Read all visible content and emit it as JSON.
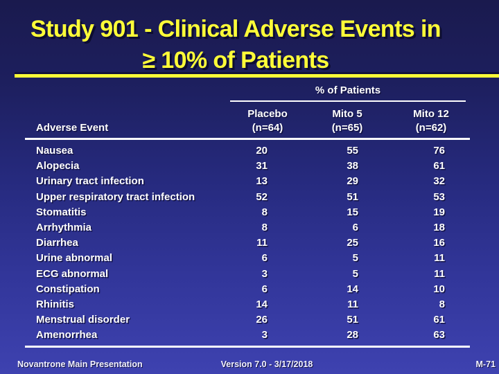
{
  "title": {
    "line1": "Study 901 - Clinical Adverse Events in",
    "line2": "≥ 10% of Patients"
  },
  "table": {
    "group_header": "% of Patients",
    "row_header": "Adverse Event",
    "columns": [
      {
        "name": "Placebo",
        "n": "(n=64)"
      },
      {
        "name": "Mito 5",
        "n": "(n=65)"
      },
      {
        "name": "Mito 12",
        "n": "(n=62)"
      }
    ],
    "rows": [
      {
        "event": "Nausea",
        "values": [
          20,
          55,
          76
        ]
      },
      {
        "event": "Alopecia",
        "values": [
          31,
          38,
          61
        ]
      },
      {
        "event": "Urinary tract infection",
        "values": [
          13,
          29,
          32
        ]
      },
      {
        "event": "Upper respiratory tract infection",
        "values": [
          52,
          51,
          53
        ]
      },
      {
        "event": "Stomatitis",
        "values": [
          8,
          15,
          19
        ]
      },
      {
        "event": "Arrhythmia",
        "values": [
          8,
          6,
          18
        ]
      },
      {
        "event": "Diarrhea",
        "values": [
          11,
          25,
          16
        ]
      },
      {
        "event": "Urine abnormal",
        "values": [
          6,
          5,
          11
        ]
      },
      {
        "event": "ECG abnormal",
        "values": [
          3,
          5,
          11
        ]
      },
      {
        "event": "Constipation",
        "values": [
          6,
          14,
          10
        ]
      },
      {
        "event": "Rhinitis",
        "values": [
          14,
          11,
          8
        ]
      },
      {
        "event": "Menstrual disorder",
        "values": [
          26,
          51,
          61
        ]
      },
      {
        "event": "Amenorrhea",
        "values": [
          3,
          28,
          63
        ]
      }
    ]
  },
  "footer": {
    "left": "Novantrone Main Presentation",
    "center": "Version 7.0 - 3/17/2018",
    "right": "M-71"
  },
  "colors": {
    "accent_yellow": "#ffff38",
    "background_top": "#1a1a4e",
    "background_bottom": "#3e42b0",
    "rule_white": "#ffffff",
    "text_white": "#ffffff"
  },
  "chart_data": {
    "type": "table",
    "title": "Study 901 - Clinical Adverse Events in ≥ 10% of Patients",
    "unit": "% of Patients",
    "categories": [
      "Nausea",
      "Alopecia",
      "Urinary tract infection",
      "Upper respiratory tract infection",
      "Stomatitis",
      "Arrhythmia",
      "Diarrhea",
      "Urine abnormal",
      "ECG abnormal",
      "Constipation",
      "Rhinitis",
      "Menstrual disorder",
      "Amenorrhea"
    ],
    "series": [
      {
        "name": "Placebo (n=64)",
        "values": [
          20,
          31,
          13,
          52,
          8,
          8,
          11,
          6,
          3,
          6,
          14,
          26,
          3
        ]
      },
      {
        "name": "Mito 5 (n=65)",
        "values": [
          55,
          38,
          29,
          51,
          15,
          6,
          25,
          5,
          5,
          14,
          11,
          51,
          28
        ]
      },
      {
        "name": "Mito 12 (n=62)",
        "values": [
          76,
          61,
          32,
          53,
          19,
          18,
          16,
          11,
          11,
          10,
          8,
          61,
          63
        ]
      }
    ]
  }
}
